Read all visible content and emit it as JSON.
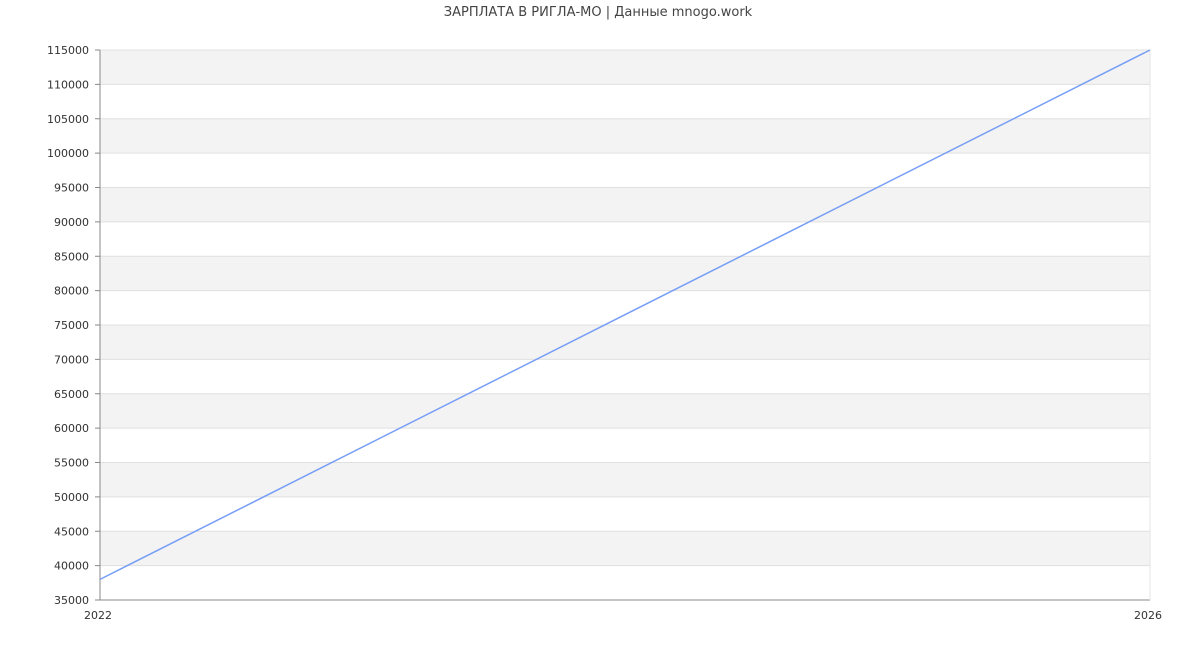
{
  "chart_data": {
    "type": "line",
    "title": "ЗАРПЛАТА В РИГЛА-МО | Данные mnogo.work",
    "x": [
      2022,
      2026
    ],
    "x_tick_labels": [
      "2022",
      "2026"
    ],
    "series": [
      {
        "values": [
          38000,
          115000
        ],
        "color": "#779ef7"
      }
    ],
    "ylim": [
      35000,
      115000
    ],
    "y_tick_step": 5000,
    "grid": true,
    "band_colors": [
      "#f3f3f3",
      "#ffffff"
    ],
    "gridline_color": "#e0e0e0",
    "axis_color": "#888888"
  }
}
